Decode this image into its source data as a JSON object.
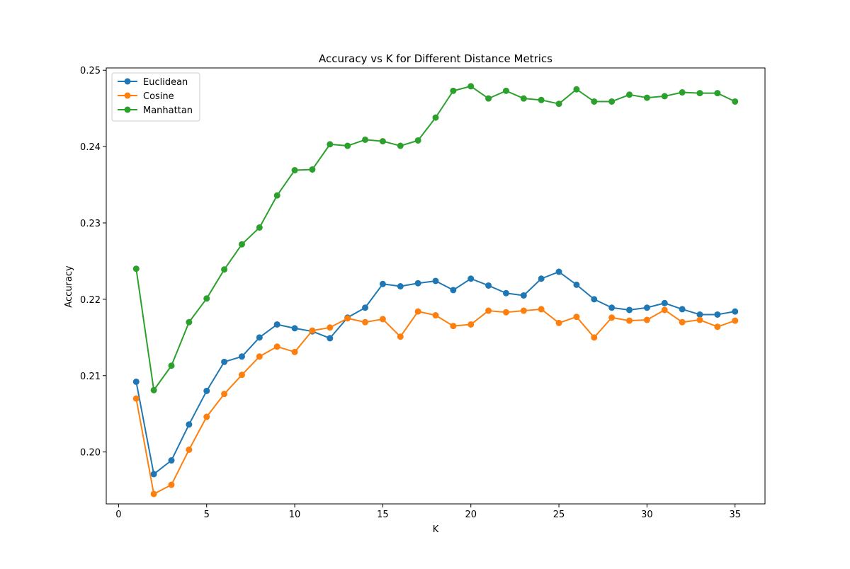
{
  "chart_data": {
    "type": "line",
    "title": "Accuracy vs K for Different Distance Metrics",
    "xlabel": "K",
    "ylabel": "Accuracy",
    "xlim": [
      -0.7,
      36.7
    ],
    "ylim": [
      0.1932,
      0.2503
    ],
    "xticks": [
      0,
      5,
      10,
      15,
      20,
      25,
      30,
      35
    ],
    "yticks": [
      0.2,
      0.21,
      0.22,
      0.23,
      0.24,
      0.25
    ],
    "ytick_labels": [
      "0.20",
      "0.21",
      "0.22",
      "0.23",
      "0.24",
      "0.25"
    ],
    "grid": false,
    "legend_position": "top-left",
    "x": [
      1,
      2,
      3,
      4,
      5,
      6,
      7,
      8,
      9,
      10,
      11,
      12,
      13,
      14,
      15,
      16,
      17,
      18,
      19,
      20,
      21,
      22,
      23,
      24,
      25,
      26,
      27,
      28,
      29,
      30,
      31,
      32,
      33,
      34,
      35
    ],
    "series": [
      {
        "name": "Euclidean",
        "color": "#1f77b4",
        "values": [
          0.2092,
          0.1971,
          0.1989,
          0.2036,
          0.208,
          0.2118,
          0.2125,
          0.215,
          0.2167,
          0.2162,
          0.2158,
          0.2149,
          0.2176,
          0.2189,
          0.222,
          0.2217,
          0.2221,
          0.2224,
          0.2212,
          0.2227,
          0.2218,
          0.2208,
          0.2205,
          0.2227,
          0.2236,
          0.2219,
          0.22,
          0.2189,
          0.2186,
          0.2189,
          0.2195,
          0.2187,
          0.218,
          0.218,
          0.2184
        ]
      },
      {
        "name": "Cosine",
        "color": "#ff7f0e",
        "values": [
          0.207,
          0.1945,
          0.1957,
          0.2003,
          0.2046,
          0.2076,
          0.2101,
          0.2125,
          0.2138,
          0.2131,
          0.2159,
          0.2163,
          0.2175,
          0.217,
          0.2174,
          0.2151,
          0.2184,
          0.2179,
          0.2165,
          0.2167,
          0.2185,
          0.2183,
          0.2185,
          0.2187,
          0.2169,
          0.2177,
          0.215,
          0.2176,
          0.2172,
          0.2173,
          0.2186,
          0.217,
          0.2173,
          0.2164,
          0.2172
        ]
      },
      {
        "name": "Manhattan",
        "color": "#2ca02c",
        "values": [
          0.224,
          0.2081,
          0.2113,
          0.217,
          0.2201,
          0.2239,
          0.2272,
          0.2294,
          0.2336,
          0.2369,
          0.237,
          0.2403,
          0.2401,
          0.2409,
          0.2407,
          0.2401,
          0.2408,
          0.2438,
          0.2473,
          0.2479,
          0.2463,
          0.2473,
          0.2463,
          0.2461,
          0.2456,
          0.2475,
          0.2459,
          0.2459,
          0.2468,
          0.2464,
          0.2466,
          0.2471,
          0.247,
          0.247,
          0.2459
        ]
      }
    ]
  }
}
